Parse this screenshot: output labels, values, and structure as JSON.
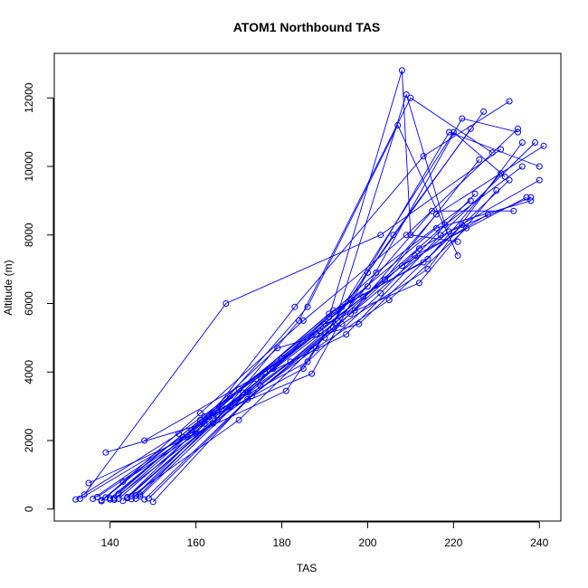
{
  "chart_data": {
    "type": "line",
    "title": "ATOM1 Northbound TAS",
    "xlabel": "TAS",
    "ylabel": "Altitude (m)",
    "xlim": [
      127,
      245
    ],
    "ylim": [
      -350,
      13300
    ],
    "xticks": [
      140,
      160,
      180,
      200,
      220,
      240
    ],
    "yticks": [
      0,
      2000,
      4000,
      6000,
      8000,
      10000,
      12000
    ],
    "xtick_labels": [
      "140",
      "160",
      "180",
      "200",
      "220",
      "240"
    ],
    "ytick_labels": [
      "0",
      "2000",
      "4000",
      "6000",
      "8000",
      "10000",
      "12000"
    ],
    "grid": false,
    "legend": "none",
    "marker": "open-circle",
    "series_color": "#0000ff",
    "series": [
      {
        "x": [
          132,
          156,
          180,
          202,
          224
        ],
        "y": [
          280,
          2200,
          4400,
          6900,
          9000
        ]
      },
      {
        "x": [
          134,
          167,
          203,
          231
        ],
        "y": [
          420,
          6000,
          8000,
          10500
        ]
      },
      {
        "x": [
          138,
          161,
          185,
          209,
          235
        ],
        "y": [
          230,
          2800,
          5500,
          8000,
          11100
        ]
      },
      {
        "x": [
          139,
          162,
          186,
          207,
          221
        ],
        "y": [
          1650,
          2500,
          5900,
          11200,
          7400
        ]
      },
      {
        "x": [
          141,
          165,
          188,
          205,
          223
        ],
        "y": [
          310,
          2600,
          4700,
          6100,
          8200
        ]
      },
      {
        "x": [
          143,
          168,
          191,
          208,
          210,
          221
        ],
        "y": [
          240,
          3000,
          5600,
          12800,
          8000,
          7800
        ]
      },
      {
        "x": [
          145,
          170,
          192,
          209,
          218
        ],
        "y": [
          380,
          2600,
          5300,
          12100,
          8300
        ]
      },
      {
        "x": [
          148,
          172,
          194,
          214,
          236
        ],
        "y": [
          280,
          3200,
          5400,
          7000,
          10700
        ]
      },
      {
        "x": [
          150,
          175,
          197,
          219,
          238
        ],
        "y": [
          210,
          3600,
          5800,
          8100,
          9100
        ]
      },
      {
        "x": [
          135,
          160,
          183,
          213,
          233
        ],
        "y": [
          760,
          2200,
          5900,
          10300,
          11900
        ]
      },
      {
        "x": [
          137,
          158,
          181,
          206,
          227
        ],
        "y": [
          350,
          2100,
          3450,
          8000,
          11600
        ]
      },
      {
        "x": [
          140,
          163,
          187,
          200,
          224
        ],
        "y": [
          280,
          2700,
          3950,
          6900,
          11100
        ]
      },
      {
        "x": [
          142,
          166,
          189,
          211,
          237
        ],
        "y": [
          300,
          2900,
          5200,
          7400,
          9100
        ]
      },
      {
        "x": [
          146,
          171,
          193,
          215,
          234
        ],
        "y": [
          300,
          3400,
          5500,
          8700,
          8700
        ]
      },
      {
        "x": [
          147,
          174,
          195,
          217,
          239
        ],
        "y": [
          420,
          3800,
          5100,
          8000,
          10700
        ]
      },
      {
        "x": [
          136,
          159,
          182,
          204,
          226
        ],
        "y": [
          300,
          2300,
          4300,
          6700,
          10200
        ]
      },
      {
        "x": [
          144,
          169,
          190,
          212,
          240
        ],
        "y": [
          320,
          3100,
          5000,
          7600,
          9600
        ]
      },
      {
        "x": [
          149,
          173,
          196,
          216,
          241
        ],
        "y": [
          310,
          3300,
          5700,
          8600,
          10600
        ]
      },
      {
        "x": [
          143,
          164,
          184,
          210,
          229
        ],
        "y": [
          800,
          2500,
          5500,
          12000,
          10400
        ]
      },
      {
        "x": [
          145,
          165,
          185,
          220,
          232
        ],
        "y": [
          290,
          2750,
          4100,
          11000,
          9700
        ]
      },
      {
        "x": [
          133,
          157,
          179,
          198,
          222
        ],
        "y": [
          300,
          2100,
          4700,
          5400,
          8300
        ]
      },
      {
        "x": [
          138,
          161,
          186,
          203,
          225
        ],
        "y": [
          260,
          2600,
          4300,
          6300,
          9200
        ]
      },
      {
        "x": [
          142,
          168,
          190,
          212,
          230
        ],
        "y": [
          450,
          3300,
          5400,
          6600,
          9300
        ]
      },
      {
        "x": [
          148,
          176,
          199,
          218,
          236
        ],
        "y": [
          2000,
          4000,
          6200,
          8300,
          10000
        ]
      },
      {
        "x": [
          139,
          162,
          188,
          208,
          228
        ],
        "y": [
          340,
          2700,
          5100,
          7100,
          8600
        ]
      },
      {
        "x": [
          141,
          166,
          192,
          213,
          233
        ],
        "y": [
          270,
          3000,
          5800,
          7200,
          9600
        ]
      },
      {
        "x": [
          144,
          170,
          194,
          216,
          238
        ],
        "y": [
          350,
          3500,
          5900,
          8200,
          9000
        ]
      },
      {
        "x": [
          146,
          172,
          196,
          219,
          240
        ],
        "y": [
          400,
          3400,
          6100,
          11000,
          10000
        ]
      },
      {
        "x": [
          147,
          178,
          200,
          222,
          235
        ],
        "y": [
          370,
          4100,
          6500,
          11400,
          11000
        ]
      },
      {
        "x": [
          140,
          164,
          191,
          214,
          231
        ],
        "y": [
          320,
          2800,
          5700,
          7300,
          9800
        ]
      }
    ]
  }
}
